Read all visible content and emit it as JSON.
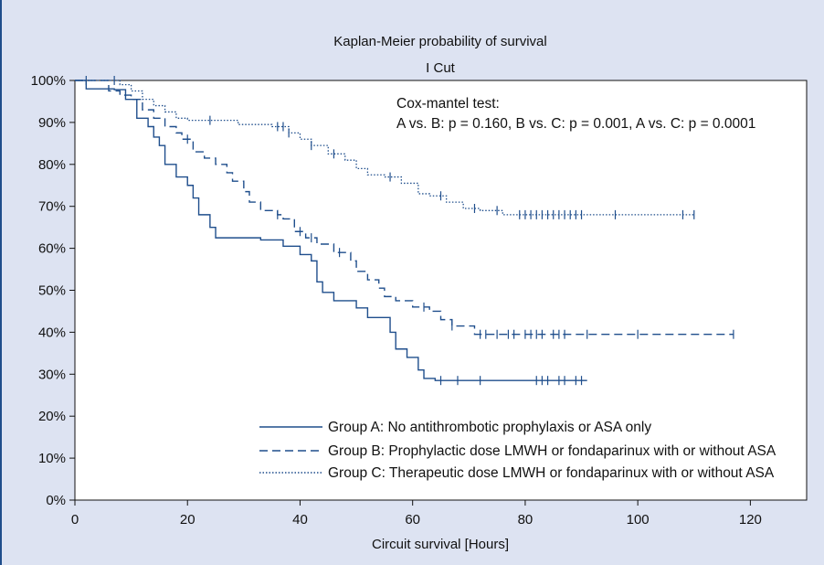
{
  "chart_data": {
    "type": "line",
    "title": "Kaplan-Meier probability of survival",
    "subtitle": "I Cut",
    "xlabel": "Circuit survival [Hours]",
    "ylabel": "",
    "xlim": [
      0,
      130
    ],
    "ylim": [
      0,
      1
    ],
    "xticks": [
      0,
      20,
      40,
      60,
      80,
      100,
      120
    ],
    "xtick_labels": [
      "0",
      "20",
      "40",
      "60",
      "80",
      "100",
      "120"
    ],
    "yticks": [
      0,
      0.1,
      0.2,
      0.3,
      0.4,
      0.5,
      0.6,
      0.7,
      0.8,
      0.9,
      1.0
    ],
    "ytick_labels": [
      "0%",
      "10%",
      "20%",
      "30%",
      "40%",
      "50%",
      "60%",
      "70%",
      "80%",
      "90%",
      "100%"
    ],
    "grid": false,
    "legend_position": "bottom-center",
    "annotation": {
      "line1": "Cox-mantel test:",
      "line2": "A vs. B: p = 0.160, B vs. C: p = 0.001, A vs. C: p = 0.0001"
    },
    "series": [
      {
        "name": "Group A: No antithrombotic prophylaxis or ASA only",
        "style": "solid",
        "color": "#1f4e8c",
        "steps": [
          [
            0,
            1.0
          ],
          [
            2,
            0.98
          ],
          [
            7,
            0.978
          ],
          [
            9,
            0.955
          ],
          [
            11,
            0.91
          ],
          [
            13,
            0.89
          ],
          [
            14,
            0.865
          ],
          [
            15,
            0.845
          ],
          [
            16,
            0.8
          ],
          [
            18,
            0.77
          ],
          [
            20,
            0.75
          ],
          [
            21,
            0.72
          ],
          [
            22,
            0.68
          ],
          [
            24,
            0.65
          ],
          [
            25,
            0.625
          ],
          [
            33,
            0.62
          ],
          [
            37,
            0.605
          ],
          [
            40,
            0.585
          ],
          [
            42,
            0.57
          ],
          [
            43,
            0.52
          ],
          [
            44,
            0.495
          ],
          [
            46,
            0.475
          ],
          [
            50,
            0.458
          ],
          [
            52,
            0.435
          ],
          [
            56,
            0.4
          ],
          [
            57,
            0.36
          ],
          [
            59,
            0.34
          ],
          [
            61,
            0.31
          ],
          [
            62,
            0.29
          ],
          [
            64,
            0.285
          ],
          [
            91,
            0.285
          ]
        ],
        "censor_x": [
          65,
          68,
          72,
          82,
          83,
          84,
          86,
          87,
          89,
          90
        ]
      },
      {
        "name": "Group B: Prophylactic dose LMWH or fondaparinux with or without ASA",
        "style": "dashed",
        "color": "#1f4e8c",
        "steps": [
          [
            0,
            1.0
          ],
          [
            6,
            0.975
          ],
          [
            8,
            0.965
          ],
          [
            10,
            0.955
          ],
          [
            12,
            0.93
          ],
          [
            14,
            0.91
          ],
          [
            16,
            0.89
          ],
          [
            18,
            0.875
          ],
          [
            19,
            0.86
          ],
          [
            21,
            0.83
          ],
          [
            23,
            0.815
          ],
          [
            25,
            0.8
          ],
          [
            27,
            0.78
          ],
          [
            28,
            0.76
          ],
          [
            30,
            0.735
          ],
          [
            31,
            0.71
          ],
          [
            33,
            0.69
          ],
          [
            36,
            0.68
          ],
          [
            37,
            0.67
          ],
          [
            39,
            0.64
          ],
          [
            41,
            0.625
          ],
          [
            43,
            0.61
          ],
          [
            46,
            0.59
          ],
          [
            49,
            0.57
          ],
          [
            50,
            0.545
          ],
          [
            52,
            0.525
          ],
          [
            54,
            0.505
          ],
          [
            55,
            0.485
          ],
          [
            57,
            0.475
          ],
          [
            60,
            0.46
          ],
          [
            63,
            0.45
          ],
          [
            65,
            0.43
          ],
          [
            67,
            0.415
          ],
          [
            71,
            0.395
          ],
          [
            117,
            0.395
          ]
        ],
        "censor_x": [
          20,
          36,
          40,
          42,
          47,
          62,
          67,
          72,
          73,
          75,
          77,
          78,
          80,
          81,
          82,
          83,
          85,
          86,
          87,
          91,
          100,
          117
        ]
      },
      {
        "name": "Group C: Therapeutic dose LMWH or fondaparinux with or without ASA",
        "style": "dotted",
        "color": "#1f4e8c",
        "steps": [
          [
            0,
            1.0
          ],
          [
            8,
            0.99
          ],
          [
            10,
            0.975
          ],
          [
            12,
            0.955
          ],
          [
            14,
            0.94
          ],
          [
            16,
            0.925
          ],
          [
            18,
            0.91
          ],
          [
            20,
            0.905
          ],
          [
            29,
            0.895
          ],
          [
            35,
            0.89
          ],
          [
            38,
            0.875
          ],
          [
            40,
            0.86
          ],
          [
            42,
            0.845
          ],
          [
            45,
            0.825
          ],
          [
            48,
            0.81
          ],
          [
            50,
            0.79
          ],
          [
            52,
            0.775
          ],
          [
            55,
            0.77
          ],
          [
            58,
            0.755
          ],
          [
            61,
            0.73
          ],
          [
            63,
            0.725
          ],
          [
            66,
            0.71
          ],
          [
            69,
            0.695
          ],
          [
            72,
            0.69
          ],
          [
            76,
            0.68
          ],
          [
            110,
            0.68
          ]
        ],
        "censor_x": [
          2,
          7,
          24,
          36,
          37,
          38,
          42,
          46,
          56,
          65,
          71,
          75,
          79,
          80,
          81,
          82,
          83,
          84,
          85,
          86,
          87,
          88,
          89,
          90,
          96,
          108,
          110
        ]
      }
    ]
  }
}
